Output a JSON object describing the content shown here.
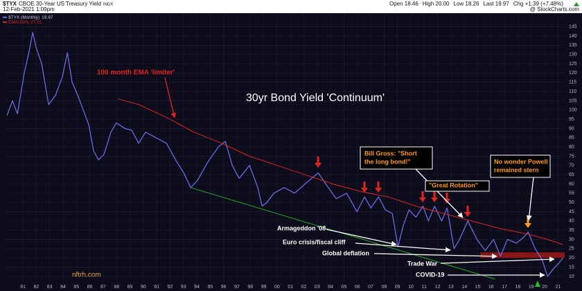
{
  "chart_data": {
    "type": "line",
    "symbol": "$TYX",
    "title": "CBOE 30-Year US Treasury Yield",
    "exchange": "INDX",
    "date": "12-Feb-2021 1:09pm",
    "source": "@ StockCharts.com",
    "quote": [
      "Open 18.46",
      "High 20.00",
      "Low 18.26",
      "Last 19.97",
      "Chg +1.39 (+7.48%)"
    ],
    "xlim": [
      1979.7,
      2021.5
    ],
    "ylim": [
      6.6,
      149
    ],
    "grid": true,
    "xticks": [
      {
        "value": 1981,
        "label": "81"
      },
      {
        "value": 1982,
        "label": "82"
      },
      {
        "value": 1983,
        "label": "83"
      },
      {
        "value": 1984,
        "label": "84"
      },
      {
        "value": 1985,
        "label": "85"
      },
      {
        "value": 1986,
        "label": "86"
      },
      {
        "value": 1987,
        "label": "87"
      },
      {
        "value": 1988,
        "label": "88"
      },
      {
        "value": 1989,
        "label": "89"
      },
      {
        "value": 1990,
        "label": "90"
      },
      {
        "value": 1991,
        "label": "91"
      },
      {
        "value": 1992,
        "label": "92"
      },
      {
        "value": 1993,
        "label": "93"
      },
      {
        "value": 1994,
        "label": "94"
      },
      {
        "value": 1995,
        "label": "95"
      },
      {
        "value": 1996,
        "label": "96"
      },
      {
        "value": 1997,
        "label": "97"
      },
      {
        "value": 1998,
        "label": "98"
      },
      {
        "value": 1999,
        "label": "99"
      },
      {
        "value": 2000,
        "label": "00"
      },
      {
        "value": 2001,
        "label": "01"
      },
      {
        "value": 2002,
        "label": "02"
      },
      {
        "value": 2003,
        "label": "03"
      },
      {
        "value": 2004,
        "label": "04"
      },
      {
        "value": 2005,
        "label": "05"
      },
      {
        "value": 2006,
        "label": "06"
      },
      {
        "value": 2007,
        "label": "07"
      },
      {
        "value": 2008,
        "label": "08"
      },
      {
        "value": 2009,
        "label": "09"
      },
      {
        "value": 2010,
        "label": "10"
      },
      {
        "value": 2011,
        "label": "11"
      },
      {
        "value": 2012,
        "label": "12"
      },
      {
        "value": 2013,
        "label": "13"
      },
      {
        "value": 2014,
        "label": "14"
      },
      {
        "value": 2015,
        "label": "15"
      },
      {
        "value": 2016,
        "label": "16"
      },
      {
        "value": 2017,
        "label": "17"
      },
      {
        "value": 2018,
        "label": "18"
      },
      {
        "value": 2019,
        "label": "19"
      },
      {
        "value": 2020,
        "label": "20"
      },
      {
        "value": 2021,
        "label": "21"
      }
    ],
    "yticks": [
      10,
      15,
      20,
      25,
      30,
      35,
      40,
      45,
      50,
      55,
      60,
      65,
      70,
      75,
      80,
      85,
      90,
      95,
      100,
      105,
      110,
      115,
      120,
      125,
      130,
      135,
      140,
      145
    ],
    "series": [
      {
        "name": "$TYX (Monthly)",
        "color": "#6a6ae6",
        "last": 19.97,
        "x": [
          1979.81,
          1980.22,
          1980.59,
          1981.1,
          1981.47,
          1981.73,
          1981.98,
          1982.4,
          1982.92,
          1983.44,
          1983.95,
          1984.32,
          1984.68,
          1985.09,
          1985.51,
          1985.92,
          1986.28,
          1986.65,
          1987.06,
          1987.58,
          1987.99,
          1988.62,
          1989.13,
          1989.65,
          1990.17,
          1990.95,
          1991.73,
          1992.5,
          1993.02,
          1993.54,
          1994.06,
          1994.83,
          1995.61,
          1996.13,
          1996.65,
          1997.17,
          1997.94,
          1998.56,
          1998.88,
          1999.24,
          1999.76,
          2000.53,
          2001.31,
          2002.09,
          2003.07,
          2003.64,
          2004.42,
          2005.2,
          2005.97,
          2006.54,
          2007.01,
          2007.58,
          2008.1,
          2008.62,
          2009.03,
          2009.45,
          2009.86,
          2010.38,
          2010.9,
          2011.31,
          2011.78,
          2012.3,
          2012.71,
          2013.23,
          2013.64,
          2014.26,
          2014.94,
          2015.56,
          2016.18,
          2016.7,
          2017.22,
          2017.89,
          2018.41,
          2018.77,
          2019.29,
          2019.81,
          2020.22,
          2020.64,
          2021.05,
          2021.36
        ],
        "values": [
          97,
          105,
          98,
          120,
          132,
          142,
          134,
          125,
          103,
          108,
          118,
          131,
          115,
          108,
          100,
          92,
          78,
          73,
          76,
          88,
          93,
          90,
          89,
          82,
          88,
          85,
          82,
          72,
          66,
          58,
          62,
          72,
          80,
          83,
          70,
          63,
          70,
          58,
          48,
          50,
          55,
          58,
          55,
          60,
          66,
          60,
          52,
          55,
          45,
          53,
          47,
          53,
          46,
          44,
          26,
          38,
          46,
          42,
          48,
          40,
          48,
          40,
          47,
          25,
          30,
          40,
          30,
          24,
          30,
          21,
          30,
          28,
          31,
          34,
          25,
          19,
          10,
          14,
          17,
          19.97
        ]
      },
      {
        "name": "EMA(100)",
        "color": "#e02222",
        "last": 27.21,
        "x": [
          1988.1,
          1989.65,
          1991.73,
          1993.8,
          1995.87,
          1997.94,
          2000.02,
          2002.09,
          2004.16,
          2006.23,
          2008.31,
          2010.38,
          2012.45,
          2014.52,
          2016.59,
          2018.67,
          2020.22,
          2021.36
        ],
        "values": [
          106,
          103,
          96,
          88,
          82,
          75,
          70,
          65,
          60,
          56,
          53,
          48,
          44,
          40,
          36,
          33,
          30,
          27.21
        ]
      }
    ],
    "trendline": {
      "color": "#22b022",
      "x": [
        1993.54,
        2016.3
      ],
      "values": [
        58,
        8.5
      ]
    },
    "zone": {
      "color": "#a01818",
      "x": [
        2015.2,
        2021.5
      ],
      "y": [
        20,
        23
      ]
    },
    "annotations": [
      {
        "lines": [
          "100 month EMA 'limiter'"
        ],
        "color": "#e02222"
      },
      {
        "lines": [
          "30yr Bond Yield 'Continuum'"
        ],
        "color": "#ffffff"
      },
      {
        "lines": [
          "Bill Gross: \"Short",
          "the long bond!\""
        ],
        "color": "#ff9a1a"
      },
      {
        "lines": [
          "No wonder Powell",
          "remained stern"
        ],
        "color": "#ff9a1a"
      },
      {
        "lines": [
          "\"Great Rotation\""
        ],
        "color": "#ff9a1a"
      },
      {
        "lines": [
          "Armageddon '08"
        ],
        "color": "#ffffff"
      },
      {
        "lines": [
          "Euro crisis/fiscal cliff"
        ],
        "color": "#ffffff"
      },
      {
        "lines": [
          "Global deflation"
        ],
        "color": "#ffffff"
      },
      {
        "lines": [
          "Trade War"
        ],
        "color": "#ffffff"
      },
      {
        "lines": [
          "COVID-19"
        ],
        "color": "#ffffff"
      }
    ],
    "watermark": "nftrh.com"
  }
}
